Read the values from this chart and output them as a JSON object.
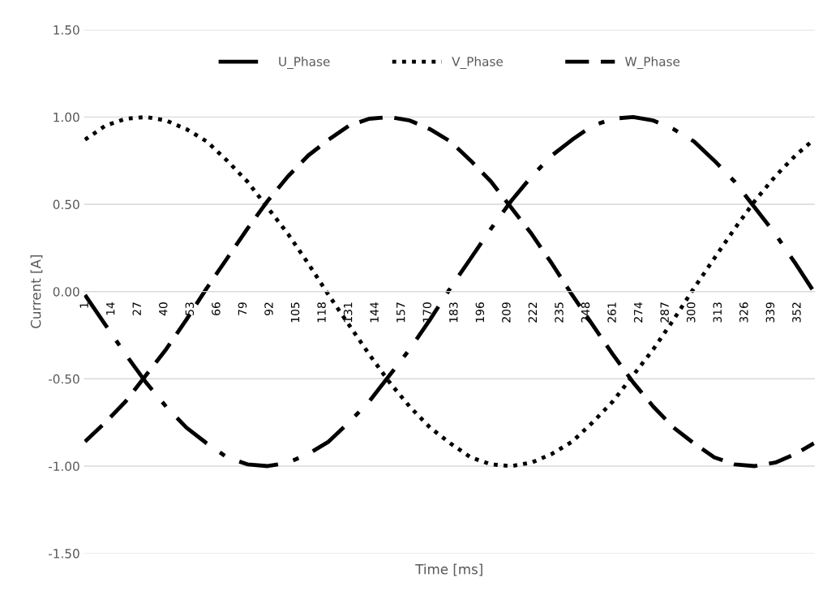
{
  "chart_data": {
    "type": "line",
    "xlabel": "Time [ms]",
    "ylabel": "Current [A]",
    "x": [
      1,
      11,
      21,
      31,
      41,
      51,
      61,
      71,
      81,
      91,
      101,
      111,
      121,
      131,
      141,
      151,
      161,
      171,
      181,
      191,
      201,
      211,
      221,
      231,
      241,
      251,
      261,
      271,
      281,
      291,
      301,
      311,
      321,
      331,
      341,
      351,
      360
    ],
    "series": [
      {
        "name": "U_Phase",
        "color": "#000000",
        "line_style": "dashdot",
        "values": [
          -0.02,
          -0.19,
          -0.36,
          -0.52,
          -0.66,
          -0.78,
          -0.87,
          -0.95,
          -0.99,
          -1.0,
          -0.98,
          -0.93,
          -0.86,
          -0.75,
          -0.63,
          -0.48,
          -0.33,
          -0.16,
          0.02,
          0.19,
          0.36,
          0.52,
          0.66,
          0.78,
          0.87,
          0.95,
          0.99,
          1.0,
          0.98,
          0.93,
          0.86,
          0.75,
          0.63,
          0.48,
          0.33,
          0.16,
          0.0
        ]
      },
      {
        "name": "V_Phase",
        "color": "#000000",
        "line_style": "dotted",
        "values": [
          0.87,
          0.95,
          0.99,
          1.0,
          0.98,
          0.93,
          0.86,
          0.75,
          0.63,
          0.48,
          0.33,
          0.16,
          -0.02,
          -0.19,
          -0.36,
          -0.52,
          -0.66,
          -0.78,
          -0.87,
          -0.95,
          -0.99,
          -1.0,
          -0.98,
          -0.93,
          -0.86,
          -0.75,
          -0.63,
          -0.48,
          -0.33,
          -0.16,
          0.02,
          0.19,
          0.36,
          0.52,
          0.66,
          0.78,
          0.87
        ]
      },
      {
        "name": "W_Phase",
        "color": "#000000",
        "line_style": "dashed",
        "values": [
          -0.86,
          -0.75,
          -0.63,
          -0.48,
          -0.33,
          -0.16,
          0.02,
          0.19,
          0.36,
          0.52,
          0.66,
          0.78,
          0.87,
          0.95,
          0.99,
          1.0,
          0.98,
          0.93,
          0.86,
          0.75,
          0.63,
          0.48,
          0.33,
          0.16,
          -0.02,
          -0.19,
          -0.36,
          -0.52,
          -0.66,
          -0.78,
          -0.87,
          -0.95,
          -0.99,
          -1.0,
          -0.98,
          -0.93,
          -0.87
        ]
      }
    ],
    "xlim": [
      0.5,
      360.5
    ],
    "xticks": [
      1,
      14,
      27,
      40,
      53,
      66,
      79,
      92,
      105,
      118,
      131,
      144,
      157,
      170,
      183,
      196,
      209,
      222,
      235,
      248,
      261,
      274,
      287,
      300,
      313,
      326,
      339,
      352
    ],
    "ylim": [
      -1.5,
      1.5
    ],
    "yticks": [
      {
        "value": -1.5,
        "label": "-1.50"
      },
      {
        "value": -1.0,
        "label": "-1.00"
      },
      {
        "value": -0.5,
        "label": "-0.50"
      },
      {
        "value": 0,
        "label": "0.00"
      },
      {
        "value": 0.5,
        "label": "0.50"
      },
      {
        "value": 1.0,
        "label": "1.00"
      },
      {
        "value": 1.5,
        "label": "1.50"
      }
    ],
    "grid": "y",
    "legend": "top",
    "marker": "none"
  }
}
